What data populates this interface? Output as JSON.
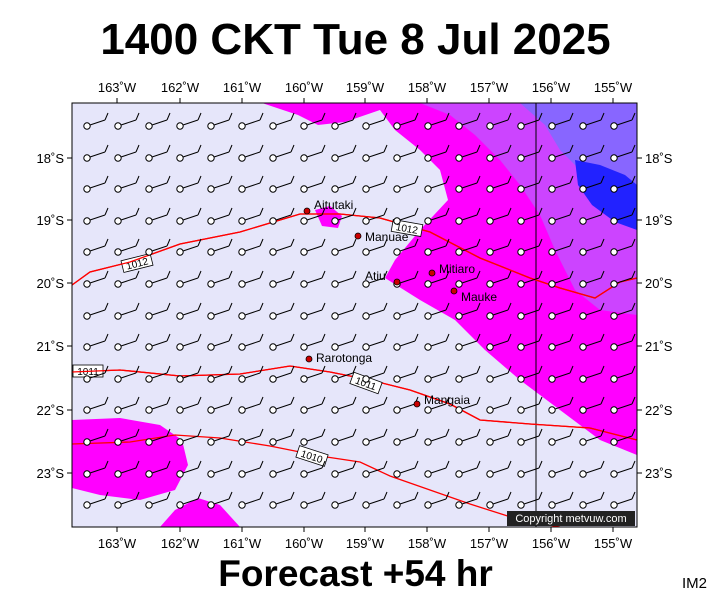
{
  "title": "1400 CKT Tue 8 Jul 2025",
  "footer": "Forecast +54 hr",
  "product_code": "IM2",
  "copyright": "Copyright metvuw.com",
  "colors": {
    "land_background": "#e6e6fa",
    "rain_light": "#ff00ff",
    "rain_medium": "#cc44ff",
    "rain_heavy": "#8866ff",
    "rain_very_heavy": "#2222ff",
    "isobar": "#ff0000",
    "town_dot": "#cc0000"
  },
  "longitude_labels": [
    "163˚W",
    "162˚W",
    "161˚W",
    "160˚W",
    "159˚W",
    "158˚W",
    "157˚W",
    "156˚W",
    "155˚W"
  ],
  "latitude_labels": [
    "18˚S",
    "19˚S",
    "20˚S",
    "21˚S",
    "22˚S",
    "23˚S"
  ],
  "towns": [
    {
      "name": "Aitutaki"
    },
    {
      "name": "Manuae"
    },
    {
      "name": "Mitiaro"
    },
    {
      "name": "Atiu"
    },
    {
      "name": "Mauke"
    },
    {
      "name": "Rarotonga"
    },
    {
      "name": "Mangaia"
    }
  ],
  "isobars": [
    {
      "label": "1012"
    },
    {
      "label": "1012"
    },
    {
      "label": "1011"
    },
    {
      "label": "1011"
    },
    {
      "label": "1010"
    }
  ]
}
